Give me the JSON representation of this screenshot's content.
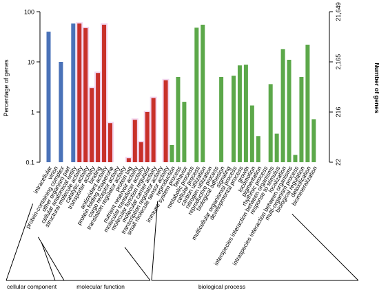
{
  "chart_data": {
    "type": "bar",
    "ylabel": "Percentage of genes",
    "y2label": "Number of genes",
    "yscale": "log",
    "ylim": [
      0.1,
      100
    ],
    "yticks": [
      "0.1",
      "1",
      "10",
      "100"
    ],
    "y2ticks": [
      "22",
      "216",
      "2,165",
      "21,649"
    ],
    "groups": [
      {
        "name": "cellular component",
        "color": "#4a72b8",
        "categories": [
          "intracellular",
          "virion",
          "protein-containing complex",
          "other organism part",
          "cellular anatomical entity"
        ],
        "values": [
          40,
          0.1,
          10,
          0.1,
          58
        ]
      },
      {
        "name": "molecular function",
        "color": "#c8302a",
        "categories": [
          "structural molecule activity",
          "catalytic activity",
          "transporter activity",
          "binding",
          "antioxidant activity",
          "protein folding chaperone",
          "cargo receptor activity",
          "translation regulator activity",
          "protein tag",
          "nutrient reservoir activity",
          "molecular transducer activity",
          "molecular function regulator",
          "molecular carrier activity",
          "transcription regulator activity",
          "small molecule sensor activity"
        ],
        "values": [
          58,
          47,
          3,
          6,
          55,
          0.6,
          0.1,
          0.1,
          0.12,
          0.7,
          0.25,
          1.0,
          1.9,
          0.1,
          4.3
        ]
      },
      {
        "name": "biological process",
        "color": "#5ca84a",
        "categories": [
          "reproduction",
          "immune system process",
          "behavior",
          "metabolic process",
          "cellular process",
          "carbon utilization",
          "nitrogen utilization",
          "reproductive process",
          "biological adhesion",
          "signaling",
          "multicellular organismal process",
          "developmental process",
          "growth",
          "locomotion",
          "pigmentation",
          "rhythmic process",
          "interspecies interaction between organisms",
          "response to stimulus",
          "localization",
          "intraspecies interaction between organisms",
          "multi-organism process",
          "biological regulation",
          "detoxification",
          "biomineralization"
        ],
        "values": [
          0.22,
          5,
          1.6,
          0.1,
          48,
          55,
          0.1,
          0.1,
          5,
          0.1,
          5.3,
          8.5,
          8.8,
          1.35,
          0.33,
          0.1,
          3.6,
          0.37,
          18,
          11,
          0.14,
          5,
          22,
          0.72
        ]
      }
    ],
    "grid": false
  }
}
